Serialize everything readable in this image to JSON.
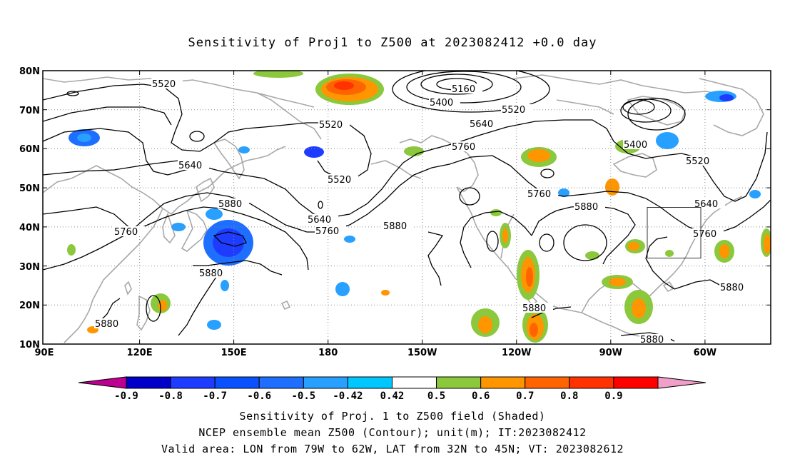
{
  "title": "Sensitivity of Proj1 to Z500 at 2023082412 +0.0 day",
  "lat_labels": [
    "80N",
    "70N",
    "60N",
    "50N",
    "40N",
    "30N",
    "20N",
    "10N"
  ],
  "lon_labels": [
    "90E",
    "120E",
    "150E",
    "180",
    "150W",
    "120W",
    "90W",
    "60W"
  ],
  "contour_labels": [
    "5160",
    "5400",
    "5520",
    "5520",
    "5520",
    "5520",
    "5520",
    "5640",
    "5640",
    "5640",
    "5760",
    "5760",
    "5760",
    "5760",
    "5760",
    "5880",
    "5880",
    "5880",
    "5880",
    "5880",
    "5880",
    "5880",
    "5400",
    "5880"
  ],
  "colorbar": {
    "labels": [
      "-0.9",
      "-0.8",
      "-0.7",
      "-0.6",
      "-0.5",
      "-0.42",
      "0.42",
      "0.5",
      "0.6",
      "0.7",
      "0.8",
      "0.9"
    ],
    "colors": [
      "#be0090",
      "#0000c8",
      "#1e3cff",
      "#0a50ff",
      "#1e6eff",
      "#28a0ff",
      "#00c8ff",
      "#ffffff",
      "#8cc83c",
      "#ff9600",
      "#ff6400",
      "#ff3200",
      "#ff0000",
      "#f0a0c8"
    ]
  },
  "valid_box": {
    "lon": [
      -79,
      -62
    ],
    "lat": [
      32,
      45
    ]
  },
  "captions": {
    "line1": "Sensitivity of Proj. 1 to Z500 field (Shaded)",
    "line2": "NCEP ensemble mean Z500 (Contour); unit(m); IT:2023082412",
    "line3": "Valid area: LON from 79W to 62W, LAT from 32N to 45N; VT: 2023082612"
  }
}
